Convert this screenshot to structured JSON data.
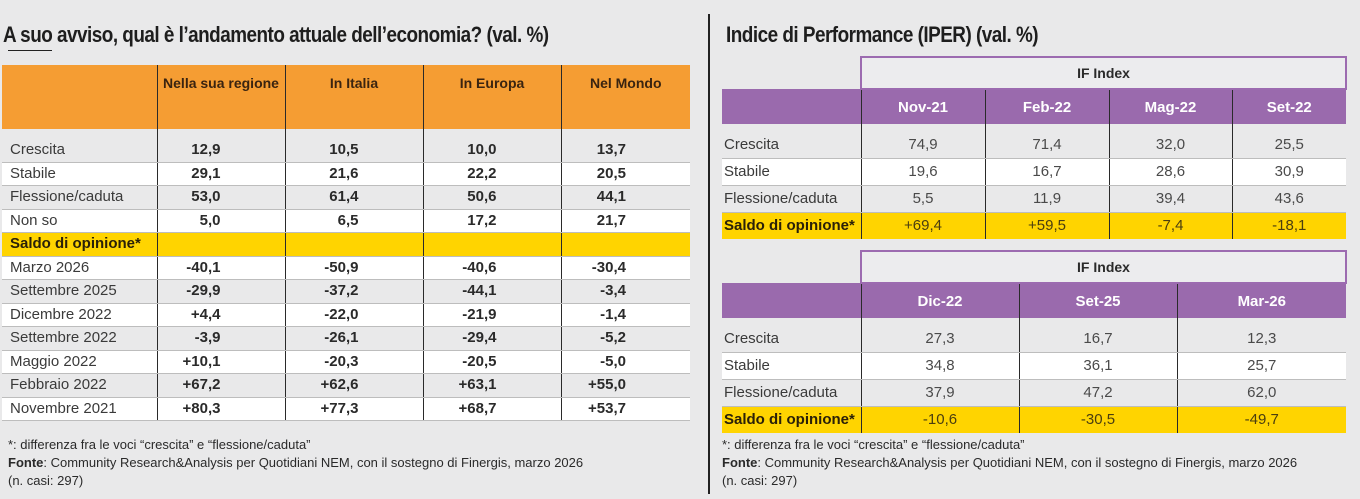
{
  "chart_data": [
    {
      "type": "table",
      "title": "A suo avviso, qual è l’andamento attuale dell’economia? (val. %)",
      "columns": [
        "",
        "Nella sua regione",
        "In Italia",
        "In Europa",
        "Nel Mondo"
      ],
      "rows": [
        {
          "label": "Crescita",
          "values": [
            "12,9",
            "10,5",
            "10,0",
            "13,7"
          ]
        },
        {
          "label": "Stabile",
          "values": [
            "29,1",
            "21,6",
            "22,2",
            "20,5"
          ]
        },
        {
          "label": "Flessione/caduta",
          "values": [
            "53,0",
            "61,4",
            "50,6",
            "44,1"
          ]
        },
        {
          "label": "Non so",
          "values": [
            "5,0",
            "6,5",
            "17,2",
            "21,7"
          ]
        }
      ],
      "section_label": "Saldo di opinione*",
      "saldo_rows": [
        {
          "label": "Marzo 2026",
          "values": [
            "-40,1",
            "-50,9",
            "-40,6",
            "-30,4"
          ]
        },
        {
          "label": "Settembre 2025",
          "values": [
            "-29,9",
            "-37,2",
            "-44,1",
            "-3,4"
          ]
        },
        {
          "label": "Dicembre 2022",
          "values": [
            "+4,4",
            "-22,0",
            "-21,9",
            "-1,4"
          ]
        },
        {
          "label": "Settembre 2022",
          "values": [
            "-3,9",
            "-26,1",
            "-29,4",
            "-5,2"
          ]
        },
        {
          "label": "Maggio 2022",
          "values": [
            "+10,1",
            "-20,3",
            "-20,5",
            "-5,0"
          ]
        },
        {
          "label": "Febbraio 2022",
          "values": [
            "+67,2",
            "+62,6",
            "+63,1",
            "+55,0"
          ]
        },
        {
          "label": "Novembre 2021",
          "values": [
            "+80,3",
            "+77,3",
            "+68,7",
            "+53,7"
          ]
        }
      ],
      "header_color": "#f59d33",
      "highlight_color": "#ffd400"
    },
    {
      "type": "table",
      "title": "Indice di Performance (IPER) (val. %)",
      "group_label": "IF Index",
      "columns": [
        "",
        "Nov-21",
        "Feb-22",
        "Mag-22",
        "Set-22"
      ],
      "rows": [
        {
          "label": "Crescita",
          "values": [
            "74,9",
            "71,4",
            "32,0",
            "25,5"
          ]
        },
        {
          "label": "Stabile",
          "values": [
            "19,6",
            "16,7",
            "28,6",
            "30,9"
          ]
        },
        {
          "label": "Flessione/caduta",
          "values": [
            "5,5",
            "11,9",
            "39,4",
            "43,6"
          ]
        },
        {
          "label": "Saldo di opinione*",
          "values": [
            "+69,4",
            "+59,5",
            "-7,4",
            "-18,1"
          ]
        }
      ],
      "header_color": "#9a6aad",
      "highlight_color": "#ffd400"
    },
    {
      "type": "table",
      "group_label": "IF Index",
      "columns": [
        "",
        "Dic-22",
        "Set-25",
        "Mar-26"
      ],
      "rows": [
        {
          "label": "Crescita",
          "values": [
            "27,3",
            "16,7",
            "12,3"
          ]
        },
        {
          "label": "Stabile",
          "values": [
            "34,8",
            "36,1",
            "25,7"
          ]
        },
        {
          "label": "Flessione/caduta",
          "values": [
            "37,9",
            "47,2",
            "62,0"
          ]
        },
        {
          "label": "Saldo di opinione*",
          "values": [
            "-10,6",
            "-30,5",
            "-49,7"
          ]
        }
      ],
      "header_color": "#9a6aad",
      "highlight_color": "#ffd400"
    }
  ],
  "notes": {
    "footnote": "*: differenza fra le voci “crescita” e “flessione/caduta”",
    "source_label": "Fonte",
    "source_text": ": Community Research&Analysis per Quotidiani NEM, con il sostegno di Finergis, marzo 2026",
    "cases_left": "(n. casi: 297)",
    "cases_right": " (n. casi: 297)"
  }
}
